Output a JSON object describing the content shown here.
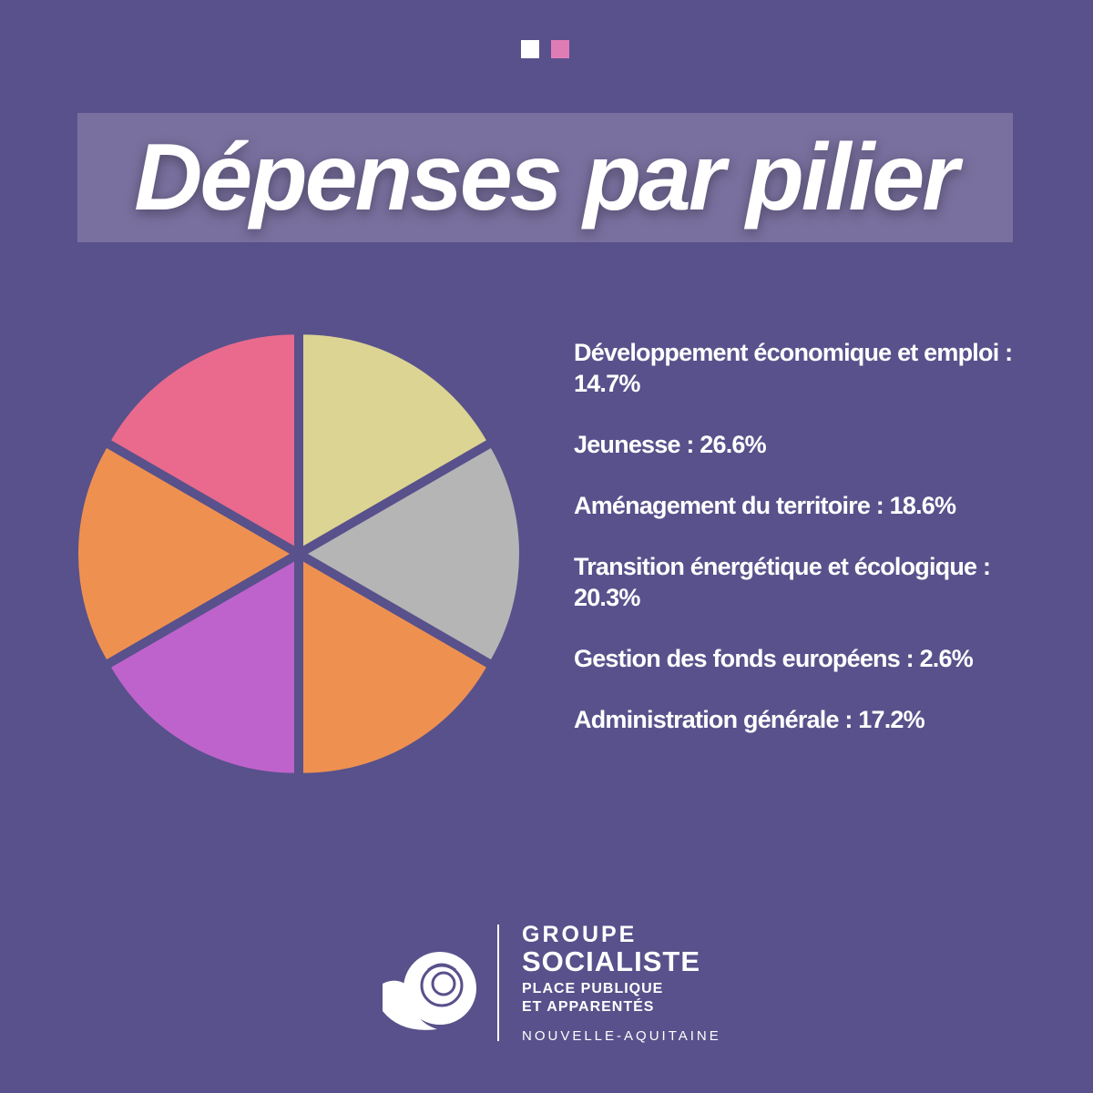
{
  "header": {
    "title": "Dépenses par pilier"
  },
  "items": [
    "Développement économique et emploi : 14.7%",
    "Jeunesse : 26.6%",
    "Aménagement du territoire : 18.6%",
    "Transition énergétique et écologique : 20.3%",
    "Gestion des fonds européens : 2.6%",
    "Administration générale : 17.2%"
  ],
  "logo": {
    "line1": "GROUPE",
    "line2": "SOCIALISTE",
    "line3": "PLACE PUBLIQUE",
    "line4": "ET APPARENTÉS",
    "region": "NOUVELLE-AQUITAINE"
  }
}
